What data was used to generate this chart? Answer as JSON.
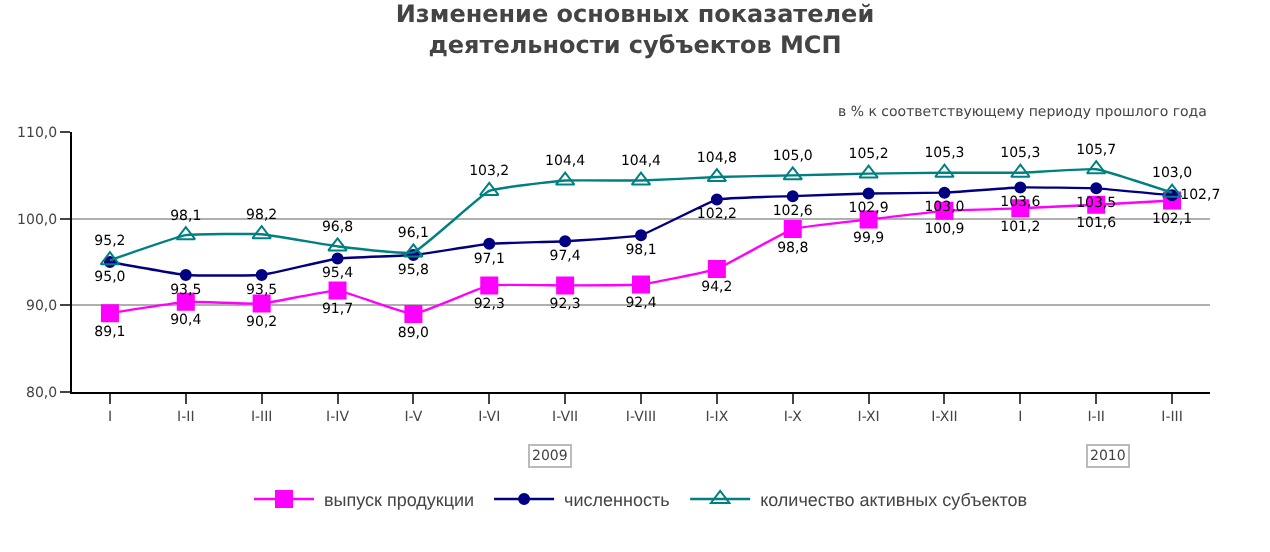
{
  "chart_data": {
    "type": "line",
    "title": "Изменение основных показателей деятельности субъектов МСП",
    "subtitle": "в % к соответствующему периоду прошлого года",
    "categories": [
      "I",
      "I-II",
      "I-III",
      "I-IV",
      "I-V",
      "I-VI",
      "I-VII",
      "I-VIII",
      "I-IX",
      "I-X",
      "I-XI",
      "I-XII",
      "I",
      "I-II",
      "I-III"
    ],
    "series": [
      {
        "name": "выпуск продукции",
        "color": "#ff00ff",
        "marker": "square",
        "values": [
          89.1,
          90.4,
          90.2,
          91.7,
          89.0,
          92.3,
          92.3,
          92.4,
          94.2,
          98.8,
          99.9,
          100.9,
          101.2,
          101.6,
          102.1
        ],
        "value_labels": [
          "89,1",
          "90,4",
          "90,2",
          "91,7",
          "89,0",
          "92,3",
          "92,3",
          "92,4",
          "94,2",
          "98,8",
          "99,9",
          "100,9",
          "101,2",
          "101,6",
          "102,1"
        ]
      },
      {
        "name": "численность",
        "color": "#000080",
        "marker": "circle",
        "values": [
          95.0,
          93.5,
          93.5,
          95.4,
          95.8,
          97.1,
          97.4,
          98.1,
          102.2,
          102.6,
          102.9,
          103.0,
          103.6,
          103.5,
          102.7
        ],
        "value_labels": [
          "95,0",
          "93,5",
          "93,5",
          "95,4",
          "95,8",
          "97,1",
          "97,4",
          "98,1",
          "102,2",
          "102,6",
          "102,9",
          "103,0",
          "103,6",
          "103,5",
          "102,7"
        ]
      },
      {
        "name": "количество активных субъектов",
        "color": "#008080",
        "marker": "triangle",
        "values": [
          95.2,
          98.1,
          98.2,
          96.8,
          96.1,
          103.2,
          104.4,
          104.4,
          104.8,
          105.0,
          105.2,
          105.3,
          105.3,
          105.7,
          103.0
        ],
        "value_labels": [
          "95,2",
          "98,1",
          "98,2",
          "96,8",
          "96,1",
          "103,2",
          "104,4",
          "104,4",
          "104,8",
          "105,0",
          "105,2",
          "105,3",
          "105,3",
          "105,7",
          "103,0"
        ]
      }
    ],
    "ylim": [
      80,
      110
    ],
    "yticks": [
      {
        "value": 80,
        "label": "80,0"
      },
      {
        "value": 90,
        "label": "90,0"
      },
      {
        "value": 100,
        "label": "100,0"
      },
      {
        "value": 110,
        "label": "110,0"
      }
    ],
    "grid": "y",
    "legend": "bottom",
    "annotations": [
      "2009",
      "2010"
    ]
  }
}
